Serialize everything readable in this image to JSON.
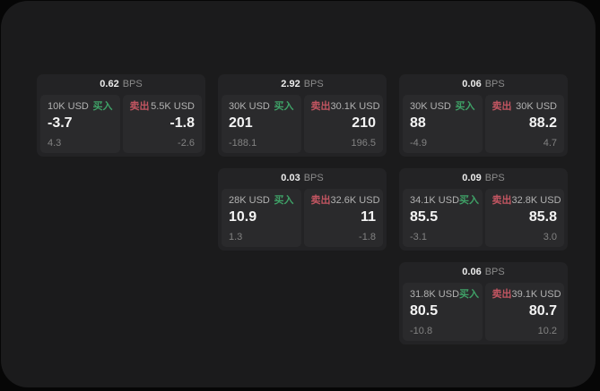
{
  "labels": {
    "bps_unit": "BPS",
    "buy": "买入",
    "sell": "卖出"
  },
  "colors": {
    "buy_green": "#3fa167",
    "sell_red": "#c15561",
    "panel_bg": "#1b1b1c",
    "card_bg": "#232325",
    "tile_bg": "#2a2a2c"
  },
  "cards": [
    {
      "bps": "0.62",
      "buy": {
        "amount": "10K USD",
        "price": "-3.7",
        "delta": "4.3"
      },
      "sell": {
        "amount": "5.5K USD",
        "price": "-1.8",
        "delta": "-2.6"
      }
    },
    {
      "bps": "2.92",
      "buy": {
        "amount": "30K USD",
        "price": "201",
        "delta": "-188.1"
      },
      "sell": {
        "amount": "30.1K USD",
        "price": "210",
        "delta": "196.5"
      }
    },
    {
      "bps": "0.06",
      "buy": {
        "amount": "30K USD",
        "price": "88",
        "delta": "-4.9"
      },
      "sell": {
        "amount": "30K USD",
        "price": "88.2",
        "delta": "4.7"
      }
    },
    {
      "bps": "0.03",
      "buy": {
        "amount": "28K USD",
        "price": "10.9",
        "delta": "1.3"
      },
      "sell": {
        "amount": "32.6K USD",
        "price": "11",
        "delta": "-1.8"
      }
    },
    {
      "bps": "0.09",
      "buy": {
        "amount": "34.1K USD",
        "price": "85.5",
        "delta": "-3.1"
      },
      "sell": {
        "amount": "32.8K USD",
        "price": "85.8",
        "delta": "3.0"
      }
    },
    {
      "bps": "0.06",
      "buy": {
        "amount": "31.8K USD",
        "price": "80.5",
        "delta": "-10.8"
      },
      "sell": {
        "amount": "39.1K USD",
        "price": "80.7",
        "delta": "10.2"
      }
    }
  ]
}
